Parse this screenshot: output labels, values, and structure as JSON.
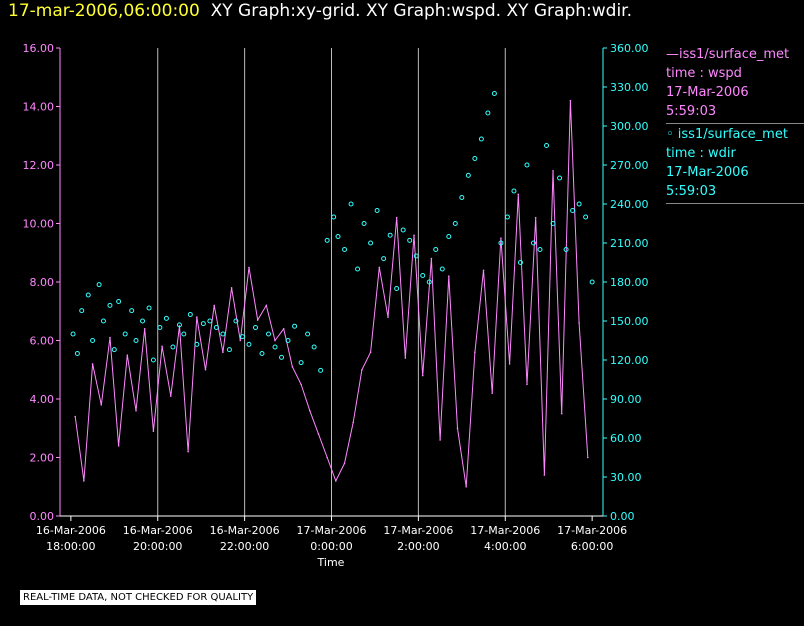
{
  "title": {
    "timestamp": "17-mar-2006,06:00:00",
    "graphs": "XY Graph:xy-grid.  XY Graph:wspd.  XY Graph:wdir."
  },
  "legend": [
    {
      "source": "—iss1/surface_met",
      "variable": "time : wspd",
      "date": "17-Mar-2006",
      "time": "5:59:03",
      "color": "#ff88ff"
    },
    {
      "source": "◦ iss1/surface_met",
      "variable": "time : wdir",
      "date": "17-Mar-2006",
      "time": "5:59:03",
      "color": "#33ffff"
    }
  ],
  "notice": "REAL-TIME DATA, NOT CHECKED FOR QUALITY",
  "colors": {
    "wspd": "#ff88ff",
    "wdir": "#33ffff",
    "grid": "#bbbbbb",
    "title": "#ffffff",
    "timestamp": "#ffff33"
  },
  "chart_data": {
    "type": "line+scatter",
    "xlabel": "Time",
    "x_range_hours": [
      -6.25,
      6.25
    ],
    "x_ticks": [
      {
        "hour": -6,
        "label1": "16-Mar-2006",
        "label2": "18:00:00"
      },
      {
        "hour": -4,
        "label1": "16-Mar-2006",
        "label2": "20:00:00"
      },
      {
        "hour": -2,
        "label1": "16-Mar-2006",
        "label2": "22:00:00"
      },
      {
        "hour": 0,
        "label1": "17-Mar-2006",
        "label2": "0:00:00"
      },
      {
        "hour": 2,
        "label1": "17-Mar-2006",
        "label2": "2:00:00"
      },
      {
        "hour": 4,
        "label1": "17-Mar-2006",
        "label2": "4:00:00"
      },
      {
        "hour": 6,
        "label1": "17-Mar-2006",
        "label2": "6:00:00"
      }
    ],
    "grid_hours": [
      -4,
      -2,
      0,
      2,
      4
    ],
    "y_left": {
      "name": "wspd",
      "ylim": [
        0,
        16
      ],
      "ticks": [
        "0.00",
        "2.00",
        "4.00",
        "6.00",
        "8.00",
        "10.00",
        "12.00",
        "14.00",
        "16.00"
      ]
    },
    "y_right": {
      "name": "wdir",
      "ylim": [
        0,
        360
      ],
      "ticks": [
        "0.00",
        "30.00",
        "60.00",
        "90.00",
        "120.00",
        "150.00",
        "180.00",
        "210.00",
        "240.00",
        "270.00",
        "300.00",
        "330.00",
        "360.00"
      ]
    },
    "wspd": {
      "x": [
        -5.9,
        -5.7,
        -5.5,
        -5.3,
        -5.1,
        -4.9,
        -4.7,
        -4.5,
        -4.3,
        -4.1,
        -3.9,
        -3.7,
        -3.5,
        -3.3,
        -3.1,
        -2.9,
        -2.7,
        -2.5,
        -2.3,
        -2.1,
        -1.9,
        -1.7,
        -1.5,
        -1.3,
        -1.1,
        -0.9,
        -0.7,
        -0.5,
        -0.3,
        -0.1,
        0.1,
        0.3,
        0.5,
        0.7,
        0.9,
        1.1,
        1.3,
        1.5,
        1.7,
        1.9,
        2.1,
        2.3,
        2.5,
        2.7,
        2.9,
        3.1,
        3.3,
        3.5,
        3.7,
        3.9,
        4.1,
        4.3,
        4.5,
        4.7,
        4.9,
        5.1,
        5.3,
        5.5,
        5.7,
        5.9
      ],
      "values": [
        3.4,
        1.2,
        5.2,
        3.8,
        6.1,
        2.4,
        5.5,
        3.6,
        6.4,
        2.9,
        5.8,
        4.1,
        6.5,
        2.2,
        6.8,
        5.0,
        7.2,
        5.6,
        7.8,
        6.0,
        8.5,
        6.7,
        7.2,
        6.0,
        6.4,
        5.1,
        4.5,
        3.6,
        2.8,
        2.0,
        1.2,
        1.8,
        3.2,
        5.0,
        5.6,
        8.5,
        6.8,
        10.2,
        5.4,
        9.6,
        4.8,
        8.8,
        2.6,
        8.2,
        3.0,
        1.0,
        5.6,
        8.4,
        4.2,
        9.5,
        5.2,
        11.0,
        4.5,
        10.2,
        1.4,
        11.8,
        3.5,
        14.2,
        6.6,
        2.0
      ]
    },
    "wdir": {
      "x": [
        -5.95,
        -5.85,
        -5.75,
        -5.6,
        -5.5,
        -5.35,
        -5.25,
        -5.1,
        -5.0,
        -4.9,
        -4.75,
        -4.6,
        -4.5,
        -4.35,
        -4.2,
        -4.1,
        -3.95,
        -3.8,
        -3.65,
        -3.5,
        -3.4,
        -3.25,
        -3.1,
        -2.95,
        -2.8,
        -2.65,
        -2.5,
        -2.35,
        -2.2,
        -2.05,
        -1.9,
        -1.75,
        -1.6,
        -1.45,
        -1.3,
        -1.15,
        -1.0,
        -0.85,
        -0.7,
        -0.55,
        -0.4,
        -0.25,
        -0.1,
        0.05,
        0.15,
        0.3,
        0.45,
        0.6,
        0.75,
        0.9,
        1.05,
        1.2,
        1.35,
        1.5,
        1.65,
        1.8,
        1.95,
        2.1,
        2.25,
        2.4,
        2.55,
        2.7,
        2.85,
        3.0,
        3.15,
        3.3,
        3.45,
        3.6,
        3.75,
        3.9,
        4.05,
        4.2,
        4.35,
        4.5,
        4.65,
        4.8,
        4.95,
        5.1,
        5.25,
        5.4,
        5.55,
        5.7,
        5.85,
        6.0
      ],
      "values": [
        140,
        125,
        158,
        170,
        135,
        178,
        150,
        162,
        128,
        165,
        140,
        158,
        135,
        150,
        160,
        120,
        145,
        152,
        130,
        147,
        140,
        155,
        132,
        148,
        150,
        145,
        140,
        128,
        150,
        138,
        132,
        145,
        125,
        140,
        130,
        122,
        135,
        146,
        118,
        140,
        130,
        112,
        212,
        230,
        215,
        205,
        240,
        190,
        225,
        210,
        235,
        198,
        216,
        175,
        220,
        212,
        200,
        185,
        180,
        205,
        190,
        215,
        225,
        245,
        262,
        275,
        290,
        310,
        325,
        210,
        230,
        250,
        195,
        270,
        210,
        205,
        285,
        225,
        260,
        205,
        235,
        240,
        230,
        180
      ]
    }
  }
}
